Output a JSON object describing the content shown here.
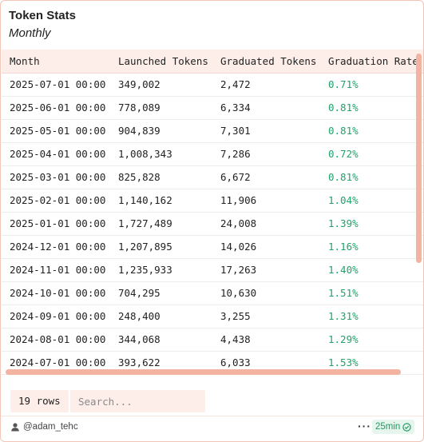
{
  "header": {
    "title": "Token Stats",
    "subtitle": "Monthly"
  },
  "table": {
    "columns": [
      "Month",
      "Launched Tokens",
      "Graduated Tokens",
      "Graduation Rate"
    ],
    "rows": [
      [
        "2025-07-01 00:00",
        "349,002",
        "2,472",
        "0.71%"
      ],
      [
        "2025-06-01 00:00",
        "778,089",
        "6,334",
        "0.81%"
      ],
      [
        "2025-05-01 00:00",
        "904,839",
        "7,301",
        "0.81%"
      ],
      [
        "2025-04-01 00:00",
        "1,008,343",
        "7,286",
        "0.72%"
      ],
      [
        "2025-03-01 00:00",
        "825,828",
        "6,672",
        "0.81%"
      ],
      [
        "2025-02-01 00:00",
        "1,140,162",
        "11,906",
        "1.04%"
      ],
      [
        "2025-01-01 00:00",
        "1,727,489",
        "24,008",
        "1.39%"
      ],
      [
        "2024-12-01 00:00",
        "1,207,895",
        "14,026",
        "1.16%"
      ],
      [
        "2024-11-01 00:00",
        "1,235,933",
        "17,263",
        "1.40%"
      ],
      [
        "2024-10-01 00:00",
        "704,295",
        "10,630",
        "1.51%"
      ],
      [
        "2024-09-01 00:00",
        "248,400",
        "3,255",
        "1.31%"
      ],
      [
        "2024-08-01 00:00",
        "344,068",
        "4,438",
        "1.29%"
      ],
      [
        "2024-07-01 00:00",
        "393,622",
        "6,033",
        "1.53%"
      ]
    ],
    "rate_color": "#20a36a"
  },
  "footer": {
    "row_count": "19 rows",
    "search_placeholder": "Search...",
    "author": "@adam_tehc",
    "more_label": "···",
    "age": "25min"
  },
  "icons": {
    "author": "user-icon",
    "age": "check-circle-icon",
    "more": "more-dots-icon"
  },
  "colors": {
    "accent": "#f2b3a0",
    "header_bg": "#fdeeea",
    "positive": "#20a36a"
  }
}
